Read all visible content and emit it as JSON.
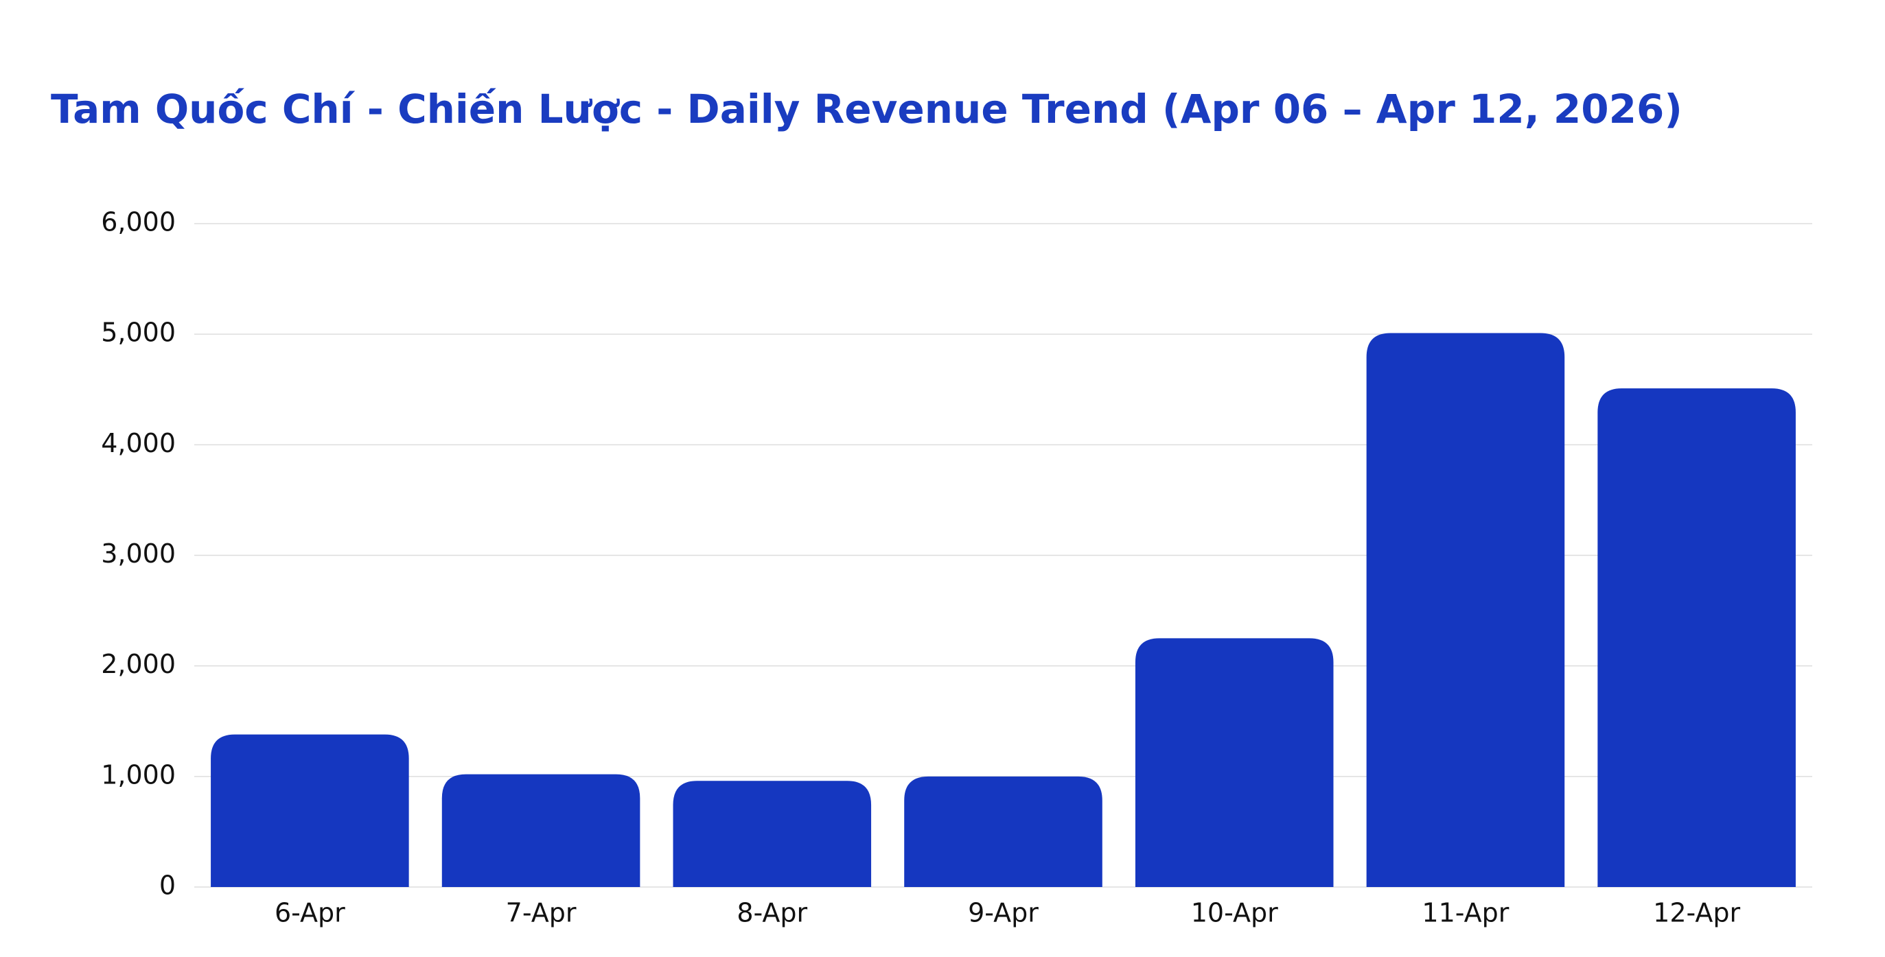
{
  "chart_data": {
    "type": "bar",
    "title": "Tam Quốc Chí - Chiến Lược - Daily Revenue Trend (Apr 06 – Apr 12, 2026)",
    "categories": [
      "6-Apr",
      "7-Apr",
      "8-Apr",
      "9-Apr",
      "10-Apr",
      "11-Apr",
      "12-Apr"
    ],
    "values": [
      1380,
      1020,
      960,
      1000,
      2250,
      5010,
      4510
    ],
    "color": "#1537c0",
    "ylim": [
      0,
      6000
    ],
    "yticks": [
      0,
      {
        "value": 1000,
        "label": "1,000"
      },
      {
        "value": 2000,
        "label": "2,000"
      },
      {
        "value": 3000,
        "label": "3,000"
      },
      {
        "value": 4000,
        "label": "4,000"
      },
      {
        "value": 5000,
        "label": "5,000"
      },
      {
        "value": 6000,
        "label": "6,000"
      }
    ],
    "grid": true
  }
}
